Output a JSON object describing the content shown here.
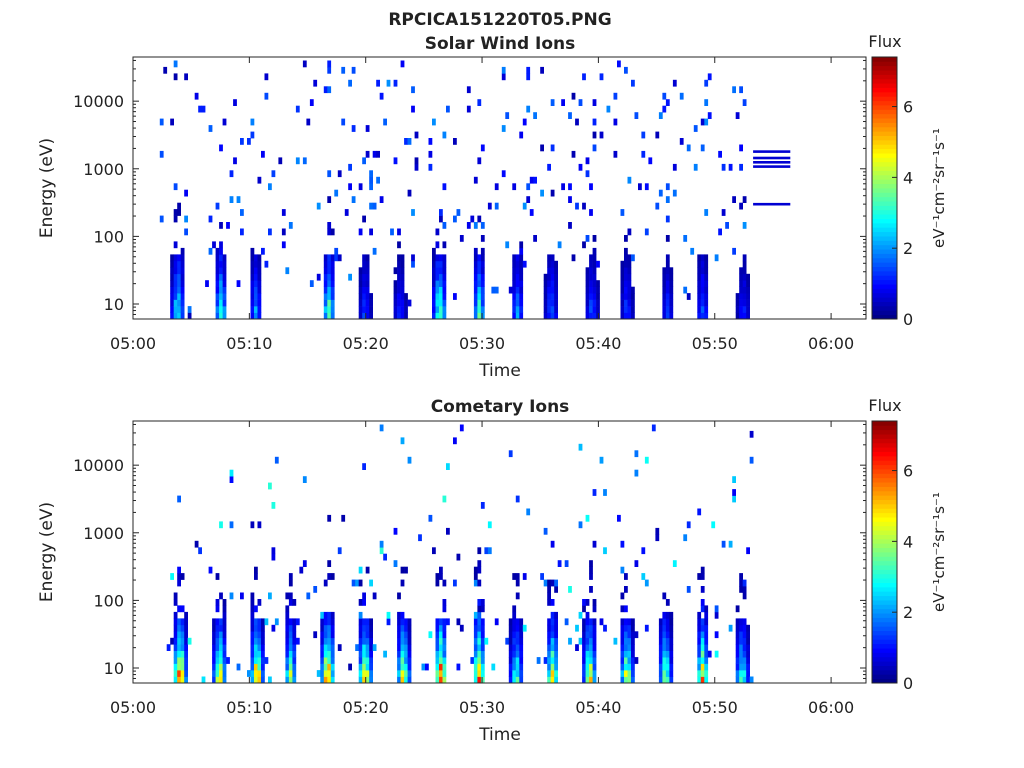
{
  "figure_title": "RPCICA151220T05.PNG",
  "colormap": [
    "#00007f",
    "#0000ff",
    "#007fff",
    "#00ffff",
    "#7fff7f",
    "#ffff00",
    "#ff7f00",
    "#ff0000",
    "#7f0000"
  ],
  "chart_data": [
    {
      "type": "heatmap",
      "title": "Solar Wind Ions",
      "xlabel": "Time",
      "ylabel": "Energy (eV)",
      "xticks": [
        "05:00",
        "05:10",
        "05:20",
        "05:30",
        "05:40",
        "05:50",
        "06:00"
      ],
      "xlim_minutes": [
        0,
        63
      ],
      "yticks": [
        {
          "value": 10,
          "label": "10"
        },
        {
          "value": 100,
          "label": "100"
        },
        {
          "value": 1000,
          "label": "1000"
        },
        {
          "value": 10000,
          "label": "10000"
        }
      ],
      "yscale": "log",
      "ylim": [
        6,
        45000
      ],
      "data_time_range_minutes": [
        2.3,
        53.3
      ],
      "colorbar": {
        "label": "Flux",
        "unit_label": "eV⁻¹cm⁻²sr⁻¹s⁻¹",
        "ticks": [
          0,
          2,
          4,
          6
        ],
        "range": [
          0,
          7.4
        ]
      },
      "flux_bursts": [
        {
          "t": 3.7,
          "peak": 3.2
        },
        {
          "t": 7.4,
          "peak": 3.0
        },
        {
          "t": 10.4,
          "peak": 2.0
        },
        {
          "t": 16.7,
          "peak": 3.6
        },
        {
          "t": 19.8,
          "peak": 1.5
        },
        {
          "t": 22.8,
          "peak": 1.2
        },
        {
          "t": 26.2,
          "peak": 3.8
        },
        {
          "t": 29.6,
          "peak": 3.0
        },
        {
          "t": 32.9,
          "peak": 2.0
        },
        {
          "t": 35.8,
          "peak": 1.8
        },
        {
          "t": 39.3,
          "peak": 1.6
        },
        {
          "t": 42.3,
          "peak": 1.4
        },
        {
          "t": 45.8,
          "peak": 1.2
        },
        {
          "t": 48.8,
          "peak": 1.6
        },
        {
          "t": 52.3,
          "peak": 1.2
        }
      ],
      "horizontal_lines": [
        {
          "t_start": 53.3,
          "t_end": 56.5,
          "energy": 1800,
          "flux": 0.6
        },
        {
          "t_start": 53.3,
          "t_end": 56.5,
          "energy": 1450,
          "flux": 0.6
        },
        {
          "t_start": 53.3,
          "t_end": 56.5,
          "energy": 1250,
          "flux": 0.6
        },
        {
          "t_start": 53.3,
          "t_end": 56.5,
          "energy": 1080,
          "flux": 0.6
        },
        {
          "t_start": 53.3,
          "t_end": 56.5,
          "energy": 300,
          "flux": 0.6
        }
      ]
    },
    {
      "type": "heatmap",
      "title": "Cometary Ions",
      "xlabel": "Time",
      "ylabel": "Energy (eV)",
      "xticks": [
        "05:00",
        "05:10",
        "05:20",
        "05:30",
        "05:40",
        "05:50",
        "06:00"
      ],
      "xlim_minutes": [
        0,
        63
      ],
      "yticks": [
        {
          "value": 10,
          "label": "10"
        },
        {
          "value": 100,
          "label": "100"
        },
        {
          "value": 1000,
          "label": "1000"
        },
        {
          "value": 10000,
          "label": "10000"
        }
      ],
      "yscale": "log",
      "ylim": [
        6,
        45000
      ],
      "data_time_range_minutes": [
        2.3,
        53.3
      ],
      "colorbar": {
        "label": "Flux",
        "unit_label": "eV⁻¹cm⁻²sr⁻¹s⁻¹",
        "ticks": [
          0,
          2,
          4,
          6
        ],
        "range": [
          0,
          7.4
        ]
      },
      "flux_bursts": [
        {
          "t": 3.9,
          "peak": 6.8
        },
        {
          "t": 7.3,
          "peak": 5.2
        },
        {
          "t": 10.5,
          "peak": 6.0
        },
        {
          "t": 13.4,
          "peak": 4.0
        },
        {
          "t": 16.6,
          "peak": 6.6
        },
        {
          "t": 19.8,
          "peak": 5.6
        },
        {
          "t": 23.1,
          "peak": 5.2
        },
        {
          "t": 26.3,
          "peak": 6.4
        },
        {
          "t": 29.6,
          "peak": 6.0
        },
        {
          "t": 32.8,
          "peak": 3.8
        },
        {
          "t": 35.9,
          "peak": 5.0
        },
        {
          "t": 39.1,
          "peak": 5.2
        },
        {
          "t": 42.3,
          "peak": 5.0
        },
        {
          "t": 45.6,
          "peak": 4.4
        },
        {
          "t": 48.8,
          "peak": 5.2
        },
        {
          "t": 52.2,
          "peak": 3.8
        }
      ],
      "horizontal_lines": []
    }
  ]
}
